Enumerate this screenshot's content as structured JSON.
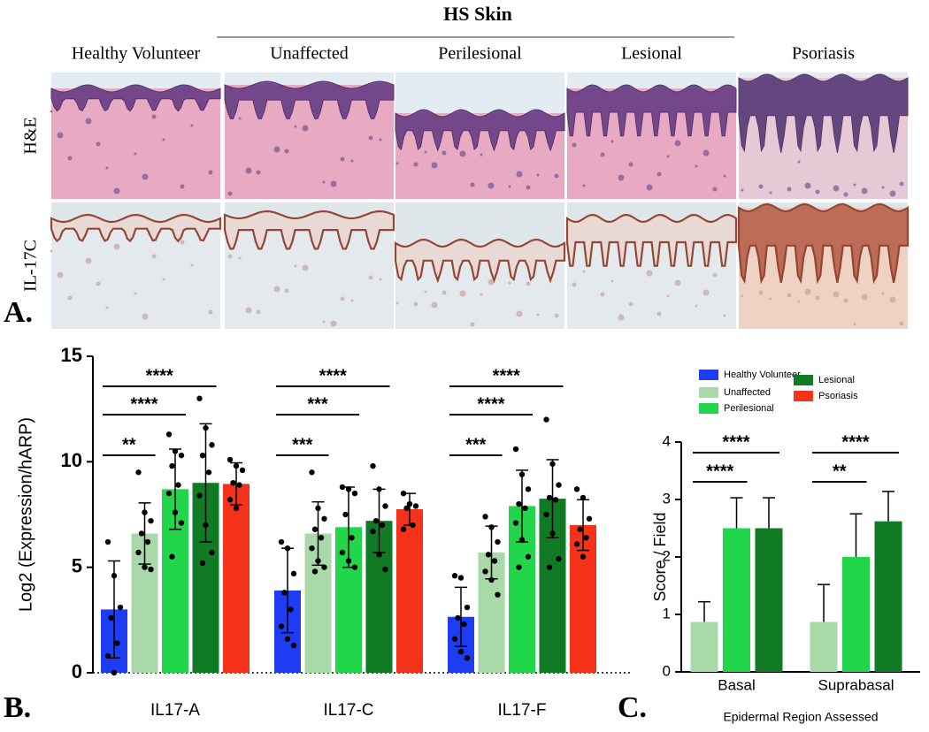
{
  "panel_a": {
    "label": "A.",
    "title": "HS Skin",
    "columns": [
      "Healthy Volunteer",
      "Unaffected",
      "Perilesional",
      "Lesional",
      "Psoriasis"
    ],
    "rows": [
      "H&E",
      "IL-17C"
    ]
  },
  "chart_data": [
    {
      "type": "bar",
      "panel_label": "B.",
      "y_label": "Log2 (Expression/hARP)",
      "categories": [
        "IL17-A",
        "IL17-C",
        "IL17-F"
      ],
      "ylim": [
        0,
        15
      ],
      "yticks": [
        0,
        5,
        10,
        15
      ],
      "error_bars": "both",
      "series": [
        {
          "name": "Healthy Volunteer",
          "color": "#1f3cf5",
          "values": [
            3.0,
            3.9,
            2.65
          ],
          "errors": [
            2.3,
            2.0,
            1.4
          ],
          "points": [
            [
              6.2,
              4.6,
              3.1,
              2.6,
              1.4,
              0.8,
              0.0
            ],
            [
              6.2,
              5.9,
              4.7,
              3.8,
              3.0,
              2.2,
              1.6,
              1.3
            ],
            [
              4.6,
              4.5,
              3.1,
              2.6,
              2.3,
              1.6,
              1.0,
              0.7
            ]
          ]
        },
        {
          "name": "Unaffected",
          "color": "#a9d8a9",
          "values": [
            6.6,
            6.6,
            5.7
          ],
          "errors": [
            1.45,
            1.5,
            1.25
          ],
          "points": [
            [
              9.5,
              7.6,
              7.2,
              6.6,
              6.2,
              5.7,
              5.0,
              4.9
            ],
            [
              9.5,
              7.8,
              7.3,
              6.8,
              6.4,
              5.9,
              5.3,
              5.0,
              4.8
            ],
            [
              7.4,
              6.9,
              6.2,
              5.6,
              5.3,
              4.8,
              4.4,
              3.7
            ]
          ]
        },
        {
          "name": "Perilesional",
          "color": "#22d64b",
          "values": [
            8.7,
            6.9,
            7.9
          ],
          "errors": [
            1.9,
            1.9,
            1.7
          ],
          "points": [
            [
              11.3,
              10.5,
              10.3,
              9.8,
              8.9,
              8.5,
              7.6,
              7.1,
              5.5
            ],
            [
              8.8,
              8.7,
              8.5,
              7.5,
              6.4,
              5.7,
              5.3,
              5.0
            ],
            [
              10.6,
              9.4,
              8.7,
              8.0,
              7.8,
              7.1,
              6.3,
              5.5,
              5.0
            ]
          ]
        },
        {
          "name": "Lesional",
          "color": "#107a24",
          "values": [
            9.0,
            7.2,
            8.25
          ],
          "errors": [
            2.8,
            1.5,
            1.85
          ],
          "points": [
            [
              13.0,
              11.6,
              10.8,
              10.3,
              9.5,
              8.4,
              7.0,
              5.7,
              5.2
            ],
            [
              9.8,
              8.7,
              7.9,
              7.2,
              7.0,
              6.7,
              5.6,
              4.9
            ],
            [
              12.0,
              9.9,
              8.9,
              8.3,
              8.2,
              7.5,
              6.6,
              5.4,
              5.0
            ]
          ]
        },
        {
          "name": "Psoriasis",
          "color": "#f5321a",
          "values": [
            8.95,
            7.75,
            7.0
          ],
          "errors": [
            1.0,
            0.75,
            1.2
          ],
          "points": [
            [
              10.1,
              9.8,
              9.6,
              9.0,
              8.9,
              8.2,
              7.8
            ],
            [
              8.5,
              8.0,
              7.9,
              7.8,
              7.0,
              6.8
            ],
            [
              8.7,
              8.3,
              7.3,
              6.8,
              6.4,
              6.1,
              5.5
            ]
          ]
        }
      ],
      "significance": [
        [
          "**",
          "****",
          "****"
        ],
        [
          "***",
          "***",
          "****"
        ],
        [
          "***",
          "****",
          "****"
        ]
      ]
    },
    {
      "type": "bar",
      "panel_label": "C.",
      "y_label": "Score / Field",
      "x_label": "Epidermal Region Assessed",
      "categories": [
        "Basal",
        "Suprabasal"
      ],
      "ylim": [
        0,
        4
      ],
      "yticks": [
        0,
        1,
        2,
        3,
        4
      ],
      "error_bars": "up",
      "series": [
        {
          "color": "#a9d8a9",
          "values": [
            0.87,
            0.87
          ],
          "errors": [
            0.35,
            0.65
          ]
        },
        {
          "color": "#22d64b",
          "values": [
            2.5,
            2.0
          ],
          "errors": [
            0.53,
            0.75
          ]
        },
        {
          "color": "#107a24",
          "values": [
            2.5,
            2.62
          ],
          "errors": [
            0.53,
            0.52
          ]
        }
      ],
      "significance": [
        [
          "****",
          "****"
        ],
        [
          "**",
          "****"
        ]
      ]
    }
  ]
}
